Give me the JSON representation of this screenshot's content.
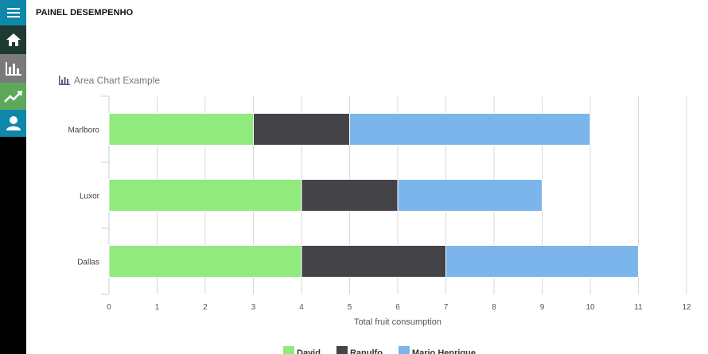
{
  "header": {
    "title": "PAINEL DESEMPENHO"
  },
  "sidebar": {
    "items": [
      {
        "icon": "menu-icon",
        "color": "#0e87a8"
      },
      {
        "icon": "home-icon",
        "color": "#1f3a33"
      },
      {
        "icon": "bar-chart-icon",
        "color": "#7a7a7a"
      },
      {
        "icon": "trend-icon",
        "color": "#5ea85b"
      },
      {
        "icon": "user-icon",
        "color": "#0e87a8"
      }
    ]
  },
  "chart_data": {
    "type": "bar",
    "orientation": "horizontal",
    "stacked": true,
    "title": "Area Chart Example",
    "title_icon": "bar-chart-icon",
    "xlabel": "Total fruit consumption",
    "ylabel": "",
    "categories": [
      "Marlboro",
      "Luxor",
      "Dallas"
    ],
    "xlim": [
      0,
      12
    ],
    "xticks": [
      0,
      1,
      2,
      3,
      4,
      5,
      6,
      7,
      8,
      9,
      10,
      11,
      12
    ],
    "grid": true,
    "legend_position": "bottom",
    "series": [
      {
        "name": "David",
        "color": "#90ea7d",
        "values": [
          3,
          4,
          4
        ]
      },
      {
        "name": "Ranulfo",
        "color": "#434348",
        "values": [
          2,
          2,
          3
        ]
      },
      {
        "name": "Mario Henrique",
        "color": "#7cb5ec",
        "values": [
          5,
          3,
          4
        ]
      }
    ]
  }
}
